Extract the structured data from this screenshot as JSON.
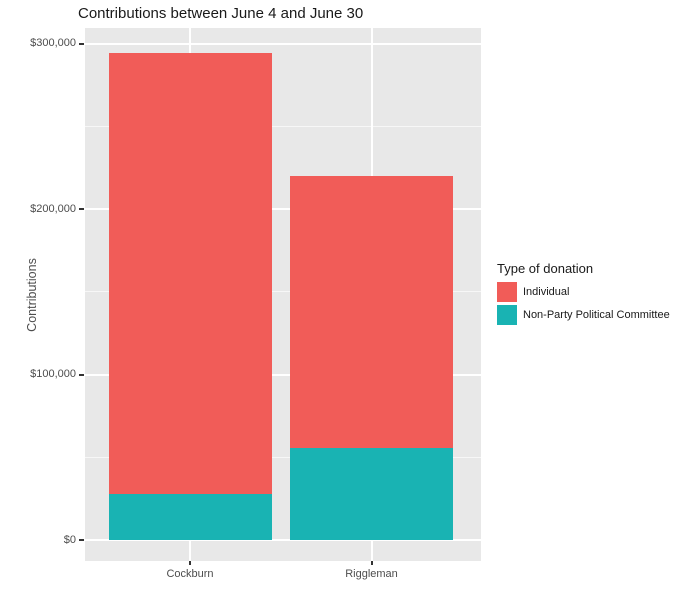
{
  "title": "Contributions between June 4 and June 30",
  "chart_data": {
    "type": "bar",
    "stacked": true,
    "title": "Contributions between June 4 and June 30",
    "xlabel": "",
    "ylabel": "Contributions",
    "categories": [
      "Cockburn",
      "Riggleman"
    ],
    "series": [
      {
        "name": "Individual",
        "color": "#f15c58",
        "values": [
          266500,
          164500
        ]
      },
      {
        "name": "Non-Party Political Committee",
        "color": "#19b3b3",
        "values": [
          27500,
          55500
        ]
      }
    ],
    "stack_totals": [
      294000,
      220000
    ],
    "ylim": [
      0,
      300000
    ],
    "y_ticks": [
      {
        "value": 0,
        "label": "$0"
      },
      {
        "value": 100000,
        "label": "$100,000"
      },
      {
        "value": 200000,
        "label": "$200,000"
      },
      {
        "value": 300000,
        "label": "$300,000"
      }
    ],
    "y_minor_ticks": [
      50000,
      150000,
      250000
    ],
    "grid": true,
    "legend_position": "right",
    "panel_background": "#e8e8e8",
    "grid_color": "#ffffff"
  },
  "legend": {
    "title": "Type of donation",
    "items": [
      {
        "label": "Individual",
        "color": "#f15c58"
      },
      {
        "label": "Non-Party Political Committee",
        "color": "#19b3b3"
      }
    ]
  },
  "colors": {
    "background": "#ffffff",
    "axis_text": "#4d4d4d",
    "tick_mark": "#333333",
    "title_text": "#1a1a1a"
  }
}
